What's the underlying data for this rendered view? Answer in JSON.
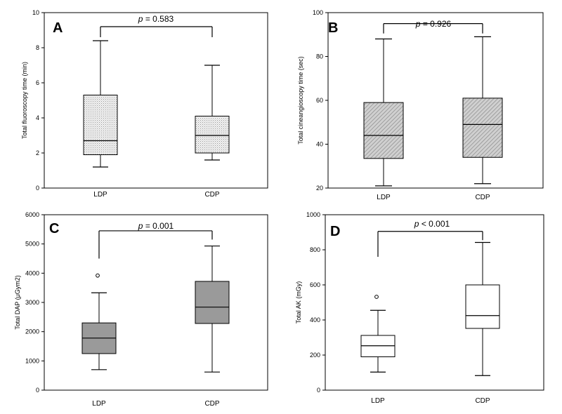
{
  "chart_data": [
    {
      "type": "box",
      "panel": "A",
      "ylabel": "Total fluoroscopy time (min)",
      "ylim": [
        0,
        10
      ],
      "yticks": [
        "0",
        "2",
        "4",
        "6",
        "8",
        "10"
      ],
      "categories": [
        "LDP",
        "CDP"
      ],
      "boxes": [
        {
          "category": "LDP",
          "min": 1.2,
          "q1": 1.9,
          "median": 2.7,
          "q3": 5.3,
          "max": 8.4,
          "outliers": []
        },
        {
          "category": "CDP",
          "min": 1.6,
          "q1": 2.0,
          "median": 3.0,
          "q3": 4.1,
          "max": 7.0,
          "outliers": []
        }
      ],
      "p_symbol": "p",
      "p_text": "= 0.583",
      "bracket_y": 9.2,
      "bracket_low": [
        8.6,
        8.6
      ],
      "fill": "#eeeeee",
      "pattern": "dots"
    },
    {
      "type": "box",
      "panel": "B",
      "ylabel": "Total cineangioscopy time (sec)",
      "ylim": [
        20,
        100
      ],
      "yticks": [
        "20",
        "40",
        "60",
        "80",
        "100"
      ],
      "categories": [
        "LDP",
        "CDP"
      ],
      "boxes": [
        {
          "category": "LDP",
          "min": 21,
          "q1": 33.5,
          "median": 44,
          "q3": 59,
          "max": 88,
          "outliers": []
        },
        {
          "category": "CDP",
          "min": 22,
          "q1": 34,
          "median": 49,
          "q3": 61,
          "max": 89,
          "outliers": []
        }
      ],
      "p_symbol": "p",
      "p_text": "= 0.926",
      "bracket_y": 95,
      "bracket_low": [
        90.5,
        90.5
      ],
      "fill": "#c9c9c9",
      "pattern": "hatch"
    },
    {
      "type": "box",
      "panel": "C",
      "ylabel": "Total DAP (μGym2)",
      "ylim": [
        0,
        6000
      ],
      "yticks": [
        "0",
        "1000",
        "2000",
        "3000",
        "4000",
        "5000",
        "6000"
      ],
      "categories": [
        "LDP",
        "CDP"
      ],
      "boxes": [
        {
          "category": "LDP",
          "min": 700,
          "q1": 1250,
          "median": 1780,
          "q3": 2300,
          "max": 3330,
          "outliers": [
            3920
          ]
        },
        {
          "category": "CDP",
          "min": 620,
          "q1": 2280,
          "median": 2840,
          "q3": 3720,
          "max": 4930,
          "outliers": []
        }
      ],
      "p_symbol": "p",
      "p_text": "= 0.001",
      "bracket_y": 5450,
      "bracket_low": [
        4500,
        5150
      ],
      "fill": "#9a9a9a",
      "pattern": "none"
    },
    {
      "type": "box",
      "panel": "D",
      "ylabel": "Total AK (mGy)",
      "ylim": [
        0,
        1000
      ],
      "yticks": [
        "0",
        "200",
        "400",
        "600",
        "800",
        "1000"
      ],
      "categories": [
        "LDP",
        "CDP"
      ],
      "boxes": [
        {
          "category": "LDP",
          "min": 103,
          "q1": 190,
          "median": 253,
          "q3": 312,
          "max": 455,
          "outliers": [
            532
          ]
        },
        {
          "category": "CDP",
          "min": 83,
          "q1": 352,
          "median": 425,
          "q3": 600,
          "max": 842,
          "outliers": []
        }
      ],
      "p_symbol": "p",
      "p_text": "< 0.001",
      "bracket_y": 905,
      "bracket_low": [
        760,
        855
      ],
      "fill": "#ffffff",
      "pattern": "none"
    }
  ]
}
